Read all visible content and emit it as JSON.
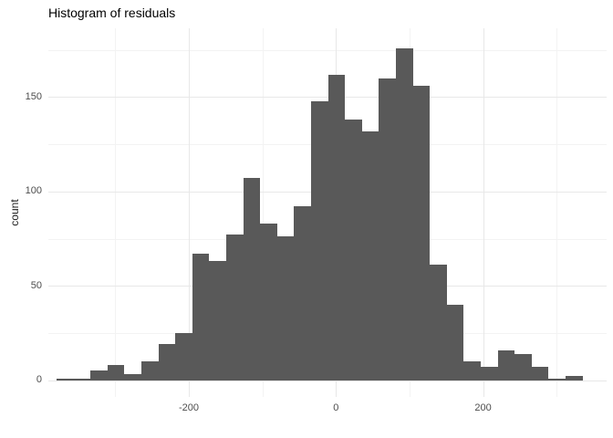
{
  "title": "Histogram of residuals",
  "colors": {
    "bar": "#595959",
    "grid_major": "#e8e8e8",
    "grid_minor": "#f3f3f3",
    "axis_text": "#4d4d4d",
    "title_text": "#000000",
    "background": "#ffffff"
  },
  "chart_data": {
    "type": "bar",
    "subtype": "histogram",
    "title": "Histogram of residuals",
    "xlabel": "",
    "ylabel": "count",
    "legend": "none",
    "grid": "on",
    "x_domain": [
      -391,
      368
    ],
    "y_domain": [
      -8.9,
      186.5
    ],
    "x_ticks": [
      -200,
      0,
      200
    ],
    "x_minor_breaks": [
      -300,
      -100,
      100,
      300
    ],
    "y_ticks": [
      0,
      50,
      100,
      150
    ],
    "y_minor_breaks": [
      25,
      75,
      125,
      175
    ],
    "bin_edges": [
      -380.0,
      -356.9,
      -333.8,
      -310.8,
      -287.7,
      -264.6,
      -241.5,
      -218.5,
      -195.4,
      -172.3,
      -149.2,
      -126.2,
      -103.1,
      -80.0,
      -56.9,
      -33.8,
      -10.8,
      12.3,
      35.4,
      58.5,
      81.5,
      104.6,
      127.7,
      150.8,
      173.8,
      196.9,
      220.0,
      243.1,
      266.2,
      289.2,
      312.3,
      335.4
    ],
    "counts": [
      1,
      1,
      5,
      8,
      3,
      10,
      19,
      25,
      67,
      63,
      77,
      107,
      83,
      76,
      92,
      148,
      162,
      138,
      132,
      160,
      176,
      156,
      61,
      40,
      10,
      7,
      16,
      14,
      7,
      1,
      2
    ]
  }
}
